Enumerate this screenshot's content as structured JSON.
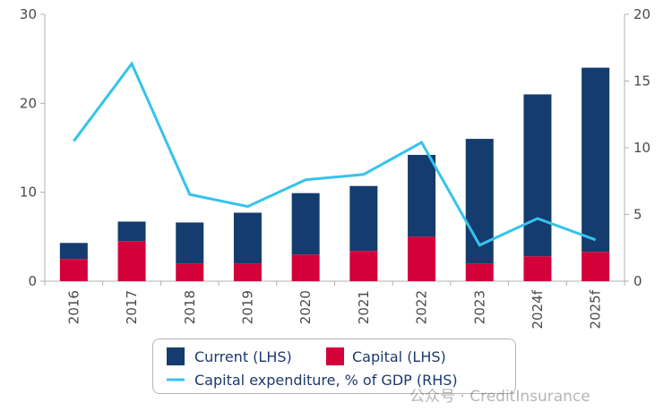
{
  "chart_data": {
    "type": "bar",
    "stacked": true,
    "categories": [
      "2016",
      "2017",
      "2018",
      "2019",
      "2020",
      "2021",
      "2022",
      "2023",
      "2024f",
      "2025f"
    ],
    "series": [
      {
        "name": "Capital (LHS)",
        "axis": "left",
        "color": "#d4003a",
        "values": [
          2.5,
          4.5,
          2.0,
          2.0,
          3.0,
          3.4,
          5.0,
          2.0,
          2.8,
          3.3
        ]
      },
      {
        "name": "Current (LHS)",
        "axis": "left",
        "color": "#143c6e",
        "values": [
          1.8,
          2.2,
          4.6,
          5.7,
          6.9,
          7.3,
          9.2,
          14.0,
          18.2,
          20.7
        ]
      },
      {
        "name": "Capital expenditure, % of GDP (RHS)",
        "axis": "right",
        "type": "line",
        "color": "#35c3ee",
        "values": [
          10.5,
          16.3,
          6.5,
          5.6,
          7.6,
          8.0,
          10.4,
          2.7,
          4.7,
          3.1
        ]
      }
    ],
    "left_axis": {
      "ylim": [
        0,
        30
      ],
      "ticks": [
        "0",
        "10",
        "20",
        "30"
      ]
    },
    "right_axis": {
      "ylim": [
        0,
        20
      ],
      "ticks": [
        "0",
        "5",
        "10",
        "15",
        "20"
      ]
    },
    "grid": false,
    "legend_position": "bottom",
    "title": "",
    "xlabel": "",
    "ylabel": ""
  },
  "legend": {
    "current": "Current (LHS)",
    "capital": "Capital (LHS)",
    "capex": "Capital expenditure, % of GDP (RHS)"
  },
  "watermark": "公众号 · CreditInsurance"
}
